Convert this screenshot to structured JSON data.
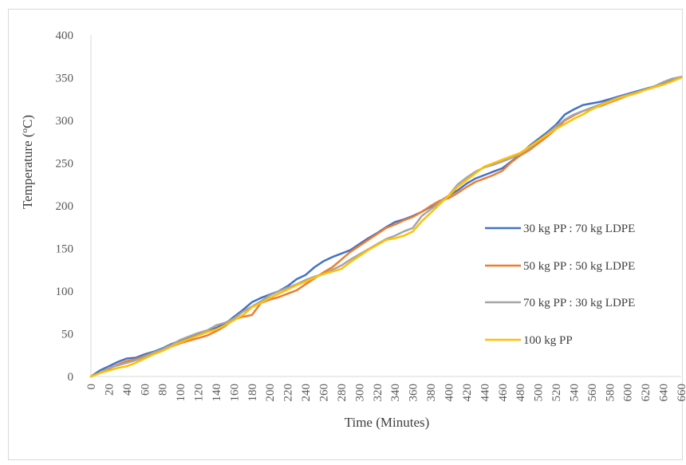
{
  "chart_data": {
    "type": "line",
    "title": "",
    "xlabel": "Time (Minutes)",
    "ylabel": "Temperature (°C)",
    "ylabel_parts": [
      "Temperature (",
      "o",
      "C)"
    ],
    "xlim": [
      0,
      660
    ],
    "ylim": [
      0,
      400
    ],
    "x_ticks": [
      "0",
      "20",
      "40",
      "60",
      "80",
      "100",
      "120",
      "140",
      "160",
      "180",
      "200",
      "220",
      "240",
      "260",
      "280",
      "300",
      "320",
      "340",
      "360",
      "380",
      "400",
      "420",
      "440",
      "460",
      "480",
      "500",
      "520",
      "540",
      "560",
      "580",
      "600",
      "620",
      "640",
      "660"
    ],
    "y_ticks": [
      "0",
      "50",
      "100",
      "150",
      "200",
      "250",
      "300",
      "350",
      "400"
    ],
    "grid": false,
    "legend_position": "right",
    "x": [
      0,
      10,
      20,
      30,
      40,
      50,
      60,
      70,
      80,
      90,
      100,
      110,
      120,
      130,
      140,
      150,
      160,
      170,
      180,
      190,
      200,
      210,
      220,
      230,
      240,
      250,
      260,
      270,
      280,
      290,
      300,
      310,
      320,
      330,
      340,
      350,
      360,
      370,
      380,
      390,
      400,
      410,
      420,
      430,
      440,
      450,
      460,
      470,
      480,
      490,
      500,
      510,
      520,
      530,
      540,
      550,
      560,
      570,
      580,
      590,
      600,
      610,
      620,
      630,
      640,
      650,
      660
    ],
    "series": [
      {
        "name": "30 kg PP : 70 kg LDPE",
        "color": "#4472c4",
        "values": [
          0,
          7,
          12,
          17,
          21,
          22,
          26,
          29,
          33,
          38,
          42,
          45,
          50,
          53,
          57,
          62,
          70,
          78,
          87,
          92,
          96,
          100,
          106,
          114,
          119,
          128,
          135,
          140,
          144,
          148,
          155,
          162,
          168,
          175,
          181,
          184,
          188,
          193,
          199,
          205,
          212,
          218,
          226,
          232,
          236,
          240,
          244,
          252,
          260,
          270,
          278,
          286,
          295,
          307,
          313,
          318,
          320,
          322,
          325,
          328,
          331,
          334,
          337,
          340,
          344,
          347,
          351
        ]
      },
      {
        "name": "50 kg PP : 50 kg LDPE",
        "color": "#ed7d31",
        "values": [
          0,
          4,
          9,
          14,
          18,
          20,
          24,
          28,
          31,
          35,
          39,
          42,
          45,
          48,
          53,
          59,
          67,
          70,
          72,
          86,
          90,
          93,
          97,
          101,
          108,
          115,
          122,
          128,
          137,
          146,
          153,
          160,
          167,
          174,
          178,
          183,
          187,
          193,
          200,
          206,
          209,
          215,
          222,
          228,
          232,
          236,
          241,
          251,
          259,
          265,
          273,
          281,
          290,
          300,
          306,
          311,
          314,
          317,
          321,
          325,
          329,
          332,
          336,
          339,
          342,
          346,
          351
        ]
      },
      {
        "name": "70 kg PP : 30 kg LDPE",
        "color": "#a5a5a5",
        "values": [
          0,
          4,
          10,
          13,
          16,
          19,
          23,
          28,
          32,
          37,
          43,
          47,
          51,
          54,
          60,
          63,
          68,
          76,
          82,
          88,
          95,
          100,
          104,
          108,
          113,
          117,
          120,
          125,
          130,
          137,
          143,
          149,
          155,
          161,
          165,
          170,
          174,
          188,
          196,
          204,
          212,
          225,
          233,
          240,
          245,
          248,
          252,
          256,
          261,
          267,
          276,
          284,
          293,
          301,
          307,
          311,
          315,
          319,
          323,
          327,
          330,
          333,
          336,
          340,
          345,
          349,
          351
        ]
      },
      {
        "name": "100 kg PP",
        "color": "#ffc000",
        "values": [
          0,
          4,
          7,
          10,
          12,
          16,
          21,
          26,
          30,
          35,
          40,
          44,
          48,
          52,
          55,
          60,
          66,
          72,
          81,
          86,
          92,
          97,
          102,
          107,
          111,
          116,
          120,
          123,
          126,
          134,
          141,
          148,
          154,
          160,
          162,
          165,
          170,
          182,
          192,
          202,
          212,
          222,
          230,
          238,
          246,
          250,
          254,
          258,
          262,
          269,
          276,
          283,
          290,
          296,
          302,
          307,
          313,
          318,
          322,
          326,
          329,
          332,
          336,
          339,
          342,
          346,
          350
        ]
      }
    ]
  }
}
